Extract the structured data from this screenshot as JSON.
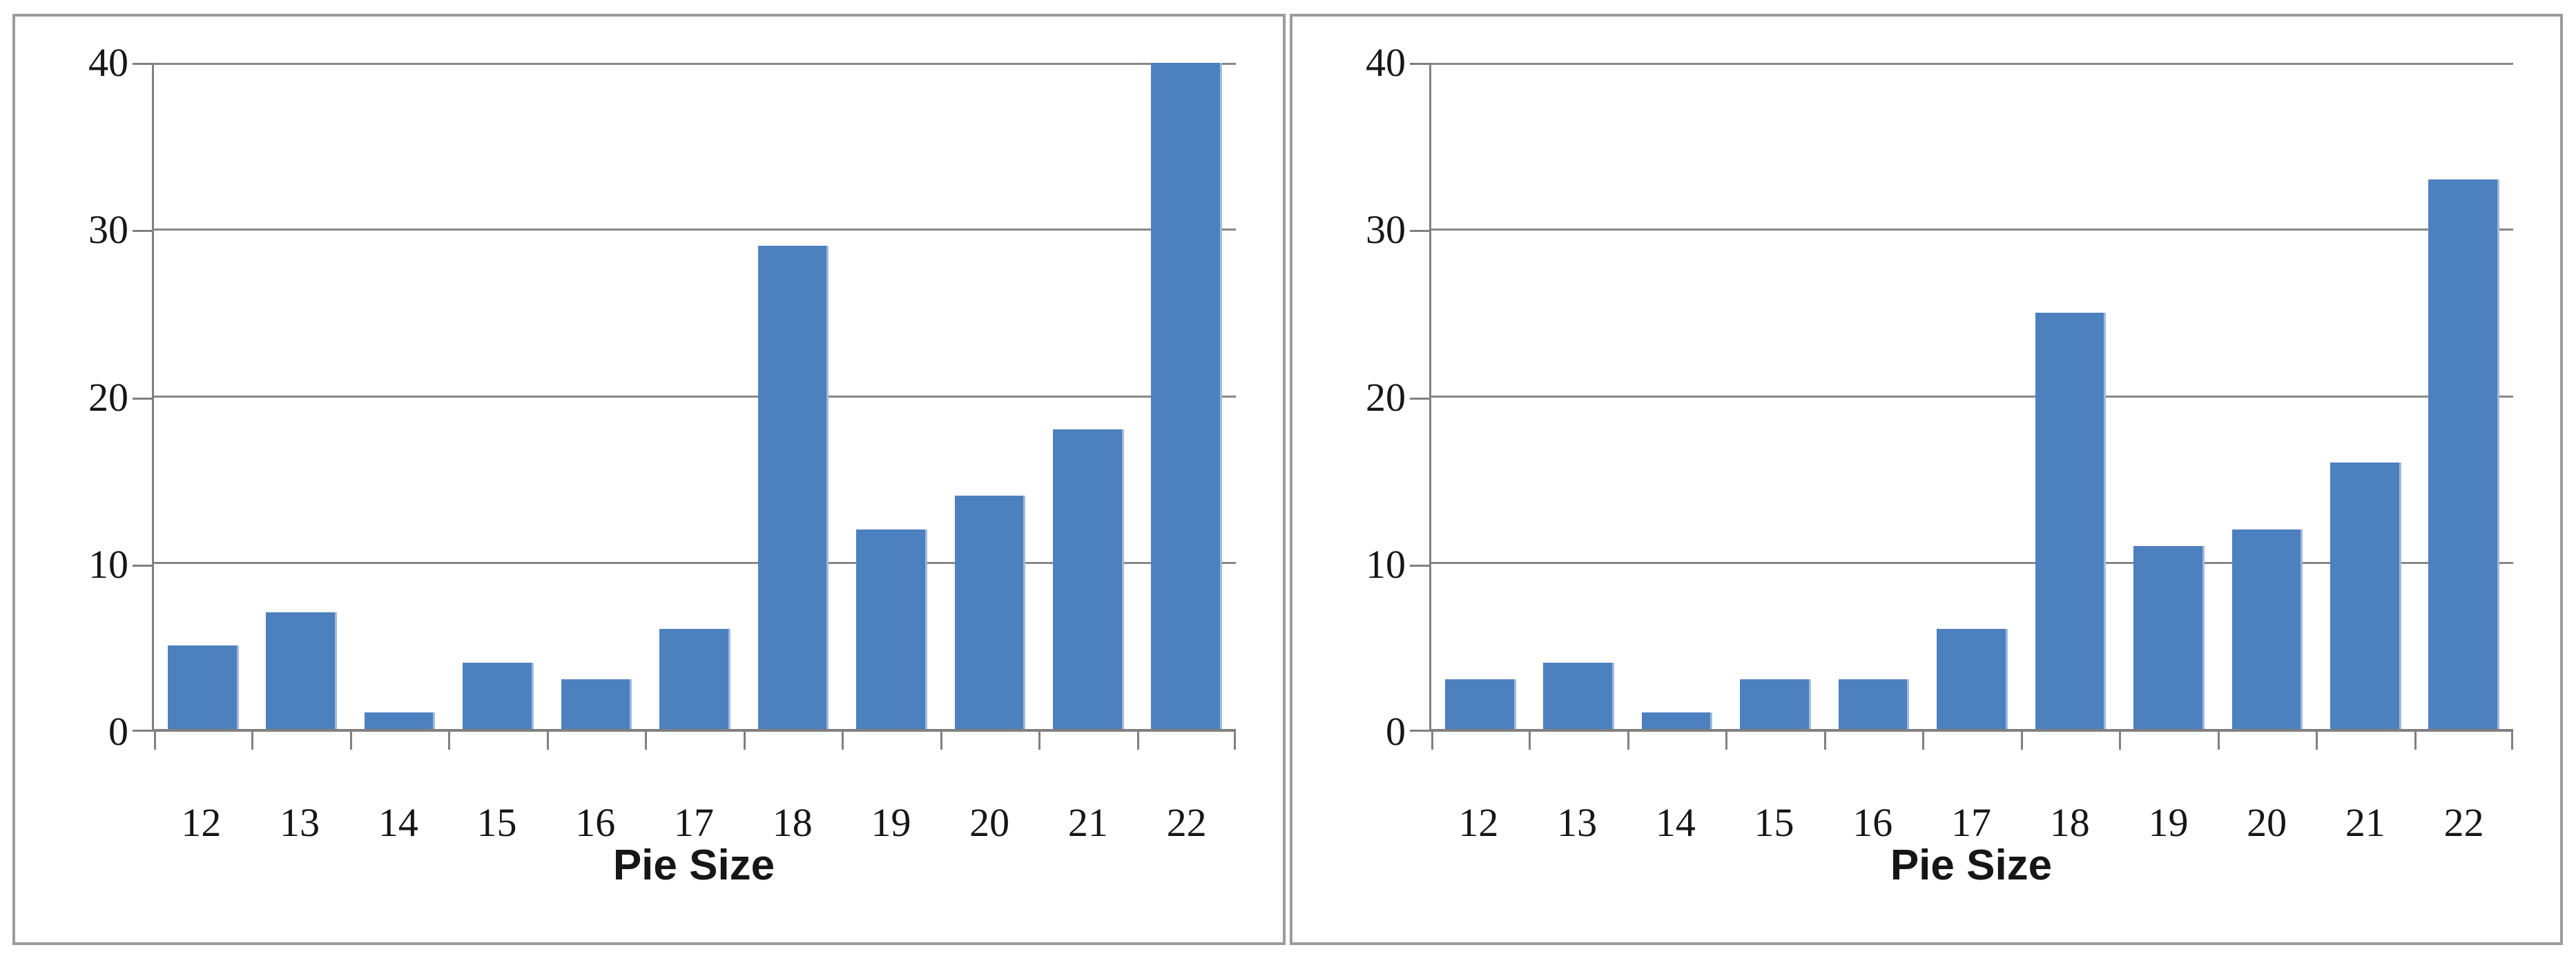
{
  "chart_data": [
    {
      "type": "bar",
      "title": "",
      "xlabel": "Pie Size",
      "ylabel": "",
      "categories": [
        "12",
        "13",
        "14",
        "15",
        "16",
        "17",
        "18",
        "19",
        "20",
        "21",
        "22"
      ],
      "values": [
        5,
        7,
        1,
        4,
        3,
        6,
        29,
        12,
        14,
        18,
        40
      ],
      "ylim": [
        0,
        40
      ],
      "yticks": [
        0,
        10,
        20,
        30,
        40
      ],
      "grid": true,
      "legend": false,
      "bar_color": "#4D80BE"
    },
    {
      "type": "bar",
      "title": "",
      "xlabel": "Pie Size",
      "ylabel": "",
      "categories": [
        "12",
        "13",
        "14",
        "15",
        "16",
        "17",
        "18",
        "19",
        "20",
        "21",
        "22"
      ],
      "values": [
        3,
        4,
        1,
        3,
        3,
        6,
        25,
        11,
        12,
        16,
        33
      ],
      "ylim": [
        0,
        40
      ],
      "yticks": [
        0,
        10,
        20,
        30,
        40
      ],
      "grid": true,
      "legend": false,
      "bar_color": "#4D80BE"
    }
  ],
  "style": {
    "bar_fill": "#4D80BE",
    "bar_edge_highlight": "#9FBBDD",
    "gridline_color": "#878787",
    "axis_color": "#808080",
    "panel_border_color": "#9C9C9C",
    "text_color": "#161616",
    "background": "#FFFFFF"
  }
}
